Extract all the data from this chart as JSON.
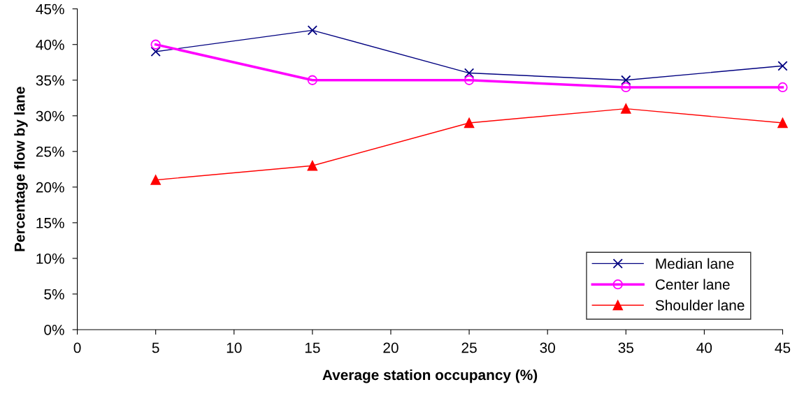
{
  "chart_data": {
    "type": "line",
    "xlabel": "Average station occupancy (%)",
    "ylabel": "Percentage flow by lane",
    "x": [
      5,
      15,
      25,
      35,
      45
    ],
    "series": [
      {
        "name": "Median lane",
        "color": "#000080",
        "marker": "cross",
        "values": [
          39,
          42,
          36,
          35,
          37
        ]
      },
      {
        "name": "Center lane",
        "color": "#ff00ff",
        "marker": "circle",
        "values": [
          40,
          35,
          35,
          34,
          34
        ]
      },
      {
        "name": "Shoulder lane",
        "color": "#ff0000",
        "marker": "triangle",
        "values": [
          21,
          23,
          29,
          31,
          29
        ]
      }
    ],
    "xlim": [
      0,
      45
    ],
    "xticks": [
      0,
      5,
      10,
      15,
      20,
      25,
      30,
      35,
      40,
      45
    ],
    "ylim": [
      0,
      45
    ],
    "yticks": [
      {
        "value": 0,
        "label": "0%"
      },
      {
        "value": 5,
        "label": "5%"
      },
      {
        "value": 10,
        "label": "10%"
      },
      {
        "value": 15,
        "label": "15%"
      },
      {
        "value": 20,
        "label": "20%"
      },
      {
        "value": 25,
        "label": "25%"
      },
      {
        "value": 30,
        "label": "30%"
      },
      {
        "value": 35,
        "label": "35%"
      },
      {
        "value": 40,
        "label": "40%"
      },
      {
        "value": 45,
        "label": "45%"
      }
    ],
    "grid": false,
    "legend": "bottom right",
    "line_style": "solid"
  }
}
